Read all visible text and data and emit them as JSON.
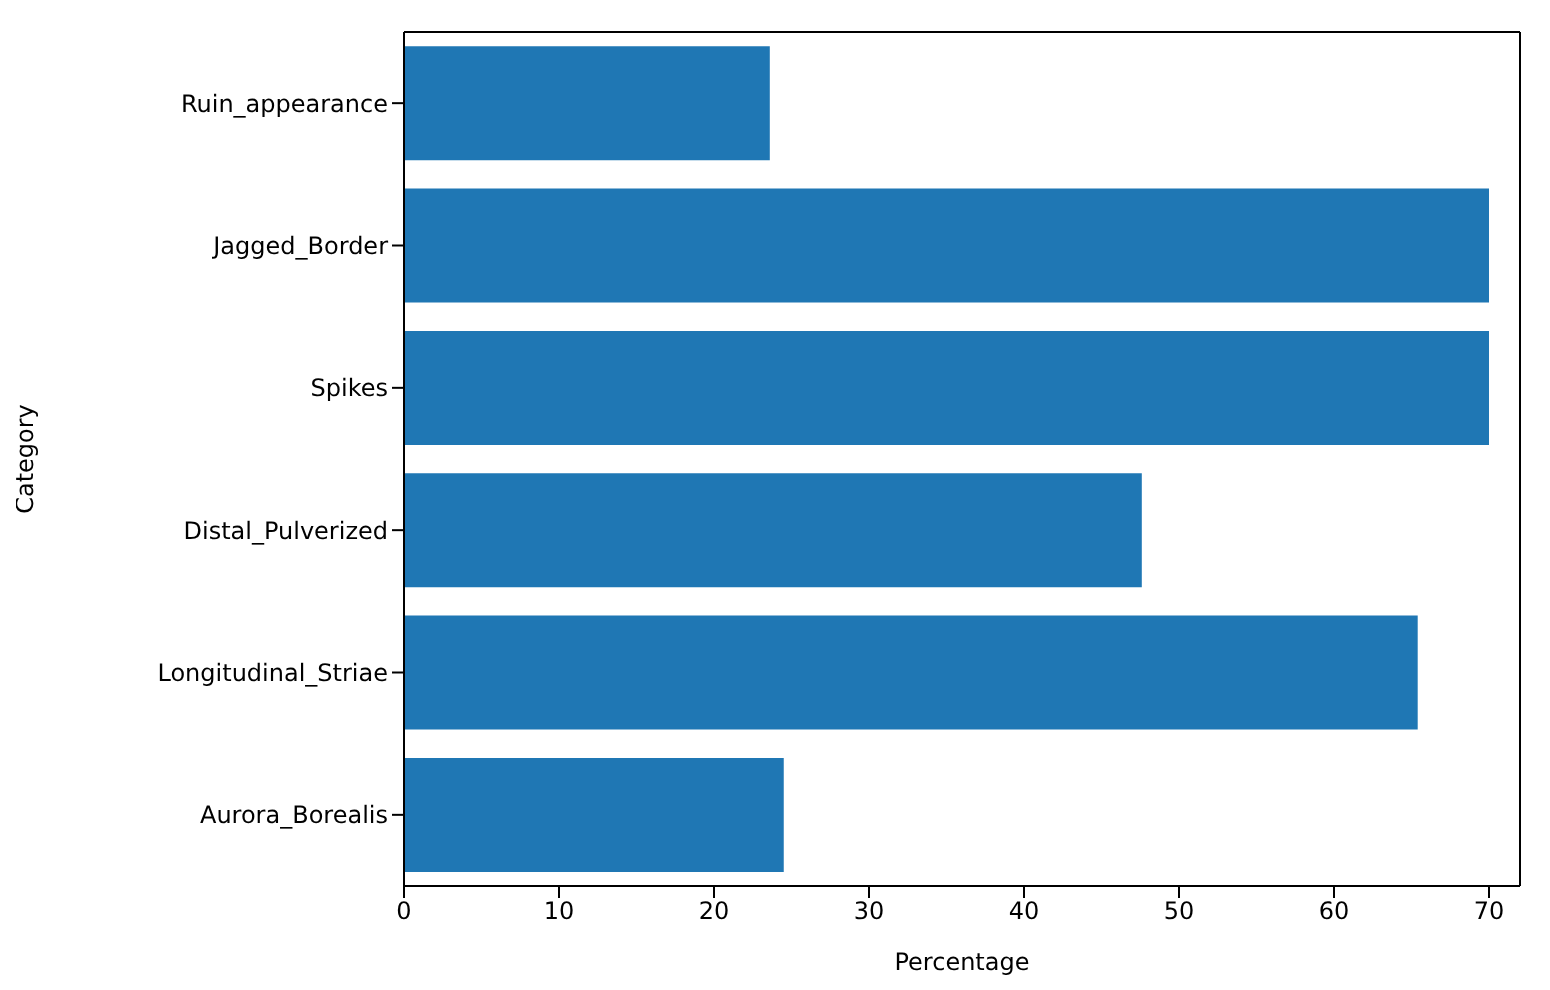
{
  "chart_data": {
    "type": "bar",
    "orientation": "horizontal",
    "xlabel": "Percentage",
    "ylabel": "Category",
    "categories": [
      "Ruin_appearance",
      "Jagged_Border",
      "Spikes",
      "Distal_Pulverized",
      "Longitudinal_Striae",
      "Aurora_Borealis"
    ],
    "values": [
      23.6,
      70,
      70,
      47.6,
      65.4,
      24.5
    ],
    "color": "#1f77b4",
    "xlim": [
      0,
      72
    ],
    "xticks": [
      0,
      10,
      20,
      30,
      40,
      50,
      60,
      70
    ],
    "grid": false
  }
}
